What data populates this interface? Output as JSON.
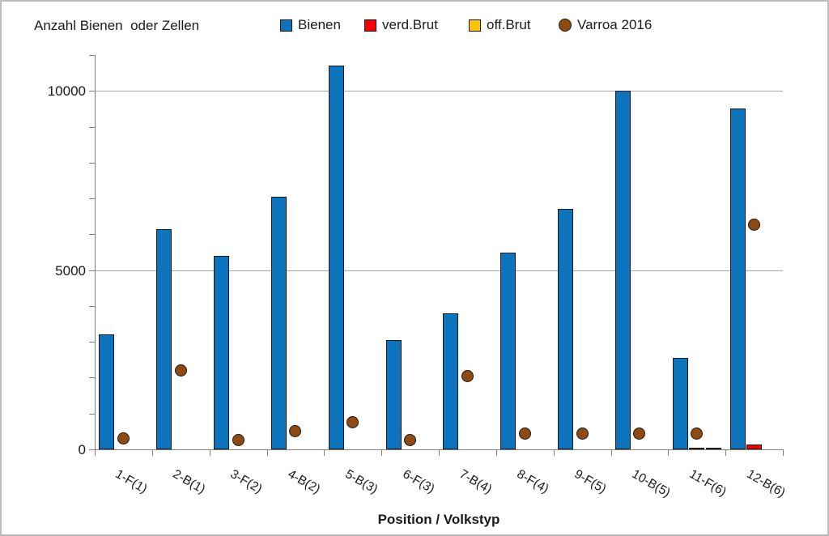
{
  "title": "Anzahl Bienen  oder Zellen",
  "legend": {
    "items": [
      {
        "label": "Bienen",
        "swatch": "square",
        "color": "#0E73BD"
      },
      {
        "label": "verd.Brut",
        "swatch": "square",
        "color": "#F40000"
      },
      {
        "label": "off.Brut",
        "swatch": "square",
        "color": "#FFC000"
      },
      {
        "label": "Varroa 2016",
        "swatch": "circle",
        "color": "#8F4A12"
      }
    ]
  },
  "xaxis_title": "Position / Volkstyp",
  "chart_data": {
    "type": "bar",
    "title": "Anzahl Bienen  oder Zellen",
    "xlabel": "Position / Volkstyp",
    "ylabel": "",
    "categories": [
      "1-F(1)",
      "2-B(1)",
      "3-F(2)",
      "4-B(2)",
      "5-B(3)",
      "6-F(3)",
      "7-B(4)",
      "8-F(4)",
      "9-F(5)",
      "10-B(5)",
      "11-F(6)",
      "12-B(6)"
    ],
    "series": [
      {
        "name": "Bienen",
        "type": "bar",
        "color": "#0E73BD",
        "values": [
          3200,
          6150,
          5400,
          7050,
          10700,
          3050,
          3800,
          5500,
          6700,
          10000,
          2550,
          9500
        ]
      },
      {
        "name": "verd.Brut",
        "type": "bar",
        "color": "#F40000",
        "values": [
          0,
          0,
          0,
          0,
          0,
          0,
          0,
          0,
          0,
          0,
          50,
          130
        ]
      },
      {
        "name": "off.Brut",
        "type": "bar",
        "color": "#FFC000",
        "values": [
          0,
          0,
          0,
          0,
          0,
          0,
          0,
          0,
          0,
          0,
          40,
          0
        ]
      },
      {
        "name": "Varroa 2016",
        "type": "scatter",
        "color": "#8F4A12",
        "values": [
          300,
          2200,
          250,
          500,
          750,
          250,
          2050,
          450,
          450,
          450,
          450,
          6270
        ]
      }
    ],
    "ylim": [
      0,
      11000
    ],
    "ytick_labels": [
      0,
      5000,
      10000
    ],
    "ytick_minor_step": 1000,
    "grid": "horizontal-major-only",
    "legend_position": "top"
  }
}
